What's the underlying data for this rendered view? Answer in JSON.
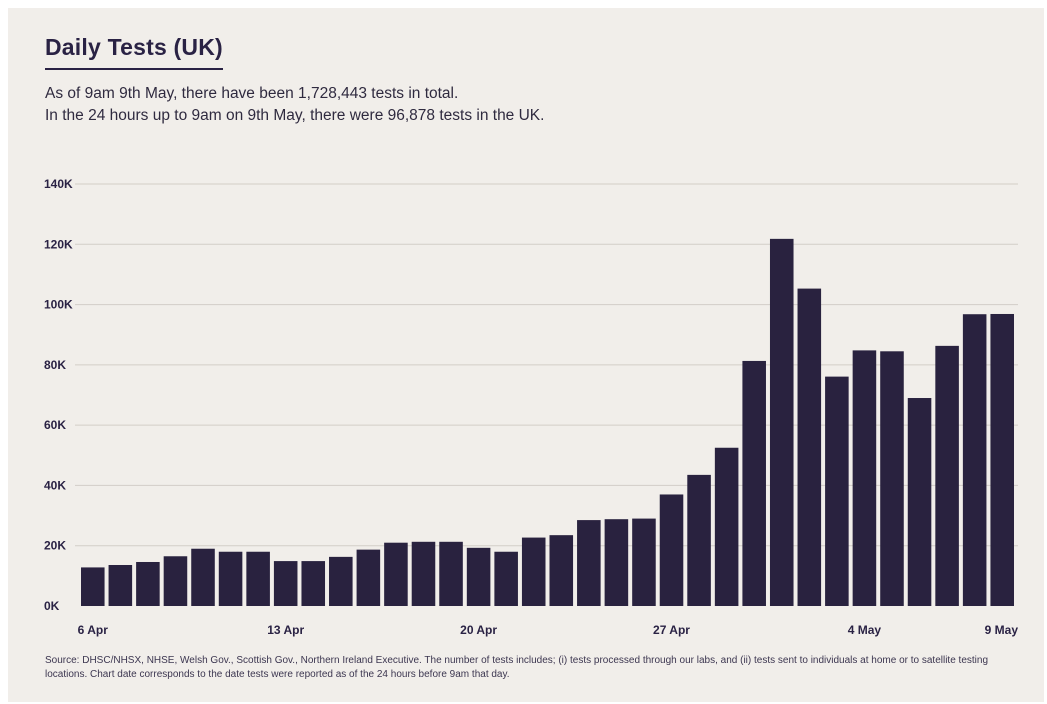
{
  "title": "Daily Tests (UK)",
  "subtitle_line1": "As of 9am 9th May, there have been 1,728,443 tests in total.",
  "subtitle_line2": "In the 24 hours up to 9am on 9th May, there were 96,878 tests in the UK.",
  "source": "Source: DHSC/NHSX, NHSE, Welsh Gov., Scottish Gov., Northern Ireland Executive. The number of tests includes; (i) tests processed through our labs, and (ii) tests sent to individuals at home or to satellite testing locations. Chart date corresponds to the date tests were reported as of the 24 hours before 9am that day.",
  "colors": {
    "background": "#f1eeea",
    "bar": "#29223f",
    "text": "#2a2244",
    "grid": "#d2cdc7"
  },
  "chart_data": {
    "type": "bar",
    "categories": [
      "6 Apr",
      "7 Apr",
      "8 Apr",
      "9 Apr",
      "10 Apr",
      "11 Apr",
      "12 Apr",
      "13 Apr",
      "14 Apr",
      "15 Apr",
      "16 Apr",
      "17 Apr",
      "18 Apr",
      "19 Apr",
      "20 Apr",
      "21 Apr",
      "22 Apr",
      "23 Apr",
      "24 Apr",
      "25 Apr",
      "26 Apr",
      "27 Apr",
      "28 Apr",
      "29 Apr",
      "30 Apr",
      "1 May",
      "2 May",
      "3 May",
      "4 May",
      "5 May",
      "6 May",
      "7 May",
      "8 May",
      "9 May"
    ],
    "values": [
      12800,
      13600,
      14600,
      16500,
      19000,
      18000,
      18000,
      14900,
      14900,
      16300,
      18700,
      21000,
      21300,
      21300,
      19300,
      18000,
      22700,
      23500,
      28500,
      28800,
      29000,
      37000,
      43500,
      52500,
      81300,
      121800,
      105300,
      76100,
      84800,
      84500,
      69000,
      86300,
      96800,
      96878
    ],
    "xtick_labels": [
      "6 Apr",
      "13 Apr",
      "20 Apr",
      "27 Apr",
      "4 May",
      "9 May"
    ],
    "xtick_indices": [
      0,
      7,
      14,
      21,
      28,
      33
    ],
    "ytick_labels": [
      "0K",
      "20K",
      "40K",
      "60K",
      "80K",
      "100K",
      "120K",
      "140K"
    ],
    "ytick_values": [
      0,
      20000,
      40000,
      60000,
      80000,
      100000,
      120000,
      140000
    ],
    "ylim": [
      0,
      140000
    ],
    "grid": true,
    "xlabel": "",
    "ylabel": ""
  }
}
